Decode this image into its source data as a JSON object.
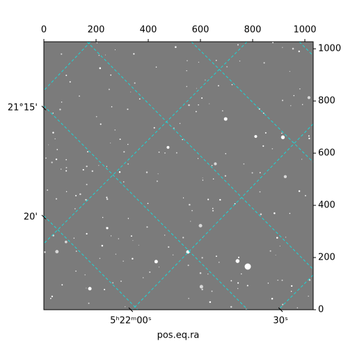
{
  "chart_data": {
    "type": "image",
    "xlabel": "pos.eq.ra",
    "xlim": [
      0,
      1032
    ],
    "xticks": [
      0,
      200,
      400,
      600,
      800,
      1000
    ],
    "ylim": [
      0,
      1027
    ],
    "yticks": [
      0,
      200,
      400,
      600,
      800,
      1000
    ],
    "ra_ticks": [
      {
        "value": 333,
        "label": "5ʰ22ᵐ00ˢ"
      },
      {
        "value": 907,
        "label": "30ˢ"
      }
    ],
    "dec_ticks": [
      {
        "value": 773,
        "label": "21°15'"
      },
      {
        "value": 355,
        "label": "20'"
      }
    ],
    "grid": true,
    "grid_color": "#19d9d9"
  }
}
